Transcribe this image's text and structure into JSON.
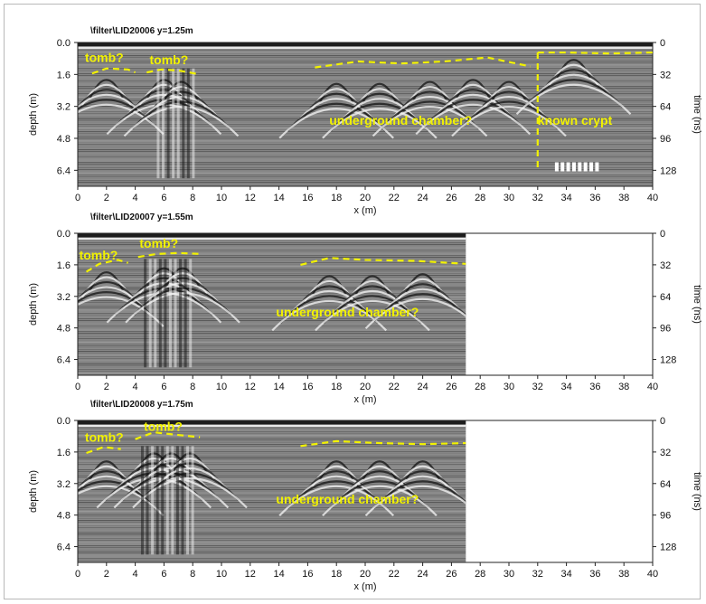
{
  "chart_data": [
    {
      "type": "radargram",
      "title": "\\filter\\LID20006 y=1.25m",
      "xlabel": "x (m)",
      "ylabel": "depth (m)",
      "y2label": "time (ns)",
      "xlim": [
        0,
        40
      ],
      "ylim": [
        0.0,
        7.2
      ],
      "xticks": [
        "0",
        "2",
        "4",
        "6",
        "8",
        "10",
        "12",
        "14",
        "16",
        "18",
        "20",
        "22",
        "24",
        "26",
        "28",
        "30",
        "32",
        "34",
        "36",
        "38",
        "40"
      ],
      "yticks": [
        "0.0",
        "1.6",
        "3.2",
        "4.8",
        "6.4"
      ],
      "y2ticks": [
        "0",
        "32",
        "64",
        "96",
        "128"
      ],
      "data_extent_x": 40,
      "annotations": [
        {
          "label": "tomb?",
          "x": 0.5,
          "depth": 0.75
        },
        {
          "label": "tomb?",
          "x": 5.0,
          "depth": 0.85
        },
        {
          "label": "underground chamber?",
          "x": 17.5,
          "depth": 3.9
        },
        {
          "label": "known crypt",
          "x": 32.0,
          "depth": 3.9
        }
      ],
      "hyperbola_apexes": [
        {
          "x": 2.0,
          "depth": 1.6
        },
        {
          "x": 6.0,
          "depth": 1.6
        },
        {
          "x": 7.2,
          "depth": 1.7
        },
        {
          "x": 18.0,
          "depth": 1.8
        },
        {
          "x": 21.0,
          "depth": 1.8
        },
        {
          "x": 24.5,
          "depth": 1.7
        },
        {
          "x": 27.5,
          "depth": 1.6
        },
        {
          "x": 30.0,
          "depth": 1.7
        },
        {
          "x": 34.5,
          "depth": 0.6
        }
      ]
    },
    {
      "type": "radargram",
      "title": "\\filter\\LID20007 y=1.55m",
      "xlabel": "x (m)",
      "ylabel": "depth (m)",
      "y2label": "time (ns)",
      "xlim": [
        0,
        40
      ],
      "ylim": [
        0.0,
        7.2
      ],
      "xticks": [
        "0",
        "2",
        "4",
        "6",
        "8",
        "10",
        "12",
        "14",
        "16",
        "18",
        "20",
        "22",
        "24",
        "26",
        "28",
        "30",
        "32",
        "34",
        "36",
        "38",
        "40"
      ],
      "yticks": [
        "0.0",
        "1.6",
        "3.2",
        "4.8",
        "6.4"
      ],
      "y2ticks": [
        "0",
        "32",
        "64",
        "96",
        "128"
      ],
      "data_extent_x": 27,
      "annotations": [
        {
          "label": "tomb?",
          "x": 0.1,
          "depth": 1.1
        },
        {
          "label": "tomb?",
          "x": 4.3,
          "depth": 0.5
        },
        {
          "label": "underground chamber?",
          "x": 13.8,
          "depth": 4.0
        }
      ],
      "hyperbola_apexes": [
        {
          "x": 2.0,
          "depth": 1.7
        },
        {
          "x": 6.0,
          "depth": 1.5
        },
        {
          "x": 7.3,
          "depth": 1.5
        },
        {
          "x": 17.5,
          "depth": 1.9
        },
        {
          "x": 20.5,
          "depth": 1.9
        },
        {
          "x": 24.0,
          "depth": 1.8
        }
      ]
    },
    {
      "type": "radargram",
      "title": "\\filter\\LID20008 y=1.75m",
      "xlabel": "x (m)",
      "ylabel": "depth (m)",
      "y2label": "time (ns)",
      "xlim": [
        0,
        40
      ],
      "ylim": [
        0.0,
        7.2
      ],
      "xticks": [
        "0",
        "2",
        "4",
        "6",
        "8",
        "10",
        "12",
        "14",
        "16",
        "18",
        "20",
        "22",
        "24",
        "26",
        "28",
        "30",
        "32",
        "34",
        "36",
        "38",
        "40"
      ],
      "yticks": [
        "0.0",
        "1.6",
        "3.2",
        "4.8",
        "6.4"
      ],
      "y2ticks": [
        "0",
        "32",
        "64",
        "96",
        "128"
      ],
      "data_extent_x": 27,
      "annotations": [
        {
          "label": "tomb?",
          "x": 0.5,
          "depth": 0.85
        },
        {
          "label": "tomb?",
          "x": 4.6,
          "depth": 0.3
        },
        {
          "label": "underground chamber?",
          "x": 13.8,
          "depth": 4.0
        }
      ],
      "hyperbola_apexes": [
        {
          "x": 2.0,
          "depth": 1.8
        },
        {
          "x": 5.3,
          "depth": 1.4
        },
        {
          "x": 6.5,
          "depth": 1.4
        },
        {
          "x": 7.8,
          "depth": 1.4
        },
        {
          "x": 18.0,
          "depth": 1.8
        },
        {
          "x": 21.0,
          "depth": 1.8
        },
        {
          "x": 24.0,
          "depth": 1.8
        }
      ]
    }
  ],
  "colors": {
    "annotation": "#f2f200",
    "background": "#ffffff"
  }
}
